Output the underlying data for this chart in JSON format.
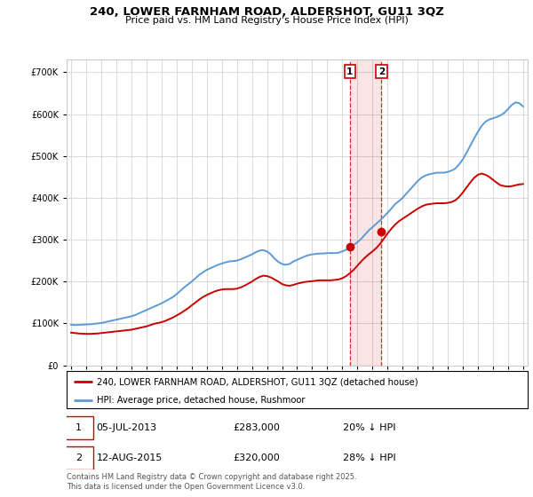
{
  "title": "240, LOWER FARNHAM ROAD, ALDERSHOT, GU11 3QZ",
  "subtitle": "Price paid vs. HM Land Registry's House Price Index (HPI)",
  "legend_line1": "240, LOWER FARNHAM ROAD, ALDERSHOT, GU11 3QZ (detached house)",
  "legend_line2": "HPI: Average price, detached house, Rushmoor",
  "annotation1_label": "1",
  "annotation1_date": "05-JUL-2013",
  "annotation1_price": "£283,000",
  "annotation1_hpi": "20% ↓ HPI",
  "annotation1_year": 2013.5,
  "annotation1_value": 283000,
  "annotation2_label": "2",
  "annotation2_date": "12-AUG-2015",
  "annotation2_price": "£320,000",
  "annotation2_hpi": "28% ↓ HPI",
  "annotation2_year": 2015.6,
  "annotation2_value": 320000,
  "footnote": "Contains HM Land Registry data © Crown copyright and database right 2025.\nThis data is licensed under the Open Government Licence v3.0.",
  "hpi_color": "#5b9bd5",
  "price_color": "#cc0000",
  "annotation_color": "#cc0000",
  "background_color": "#ffffff",
  "grid_color": "#cccccc",
  "ylim": [
    0,
    730000
  ],
  "yticks": [
    0,
    100000,
    200000,
    300000,
    400000,
    500000,
    600000,
    700000
  ],
  "hpi_years": [
    1995.0,
    1995.25,
    1995.5,
    1995.75,
    1996.0,
    1996.25,
    1996.5,
    1996.75,
    1997.0,
    1997.25,
    1997.5,
    1997.75,
    1998.0,
    1998.25,
    1998.5,
    1998.75,
    1999.0,
    1999.25,
    1999.5,
    1999.75,
    2000.0,
    2000.25,
    2000.5,
    2000.75,
    2001.0,
    2001.25,
    2001.5,
    2001.75,
    2002.0,
    2002.25,
    2002.5,
    2002.75,
    2003.0,
    2003.25,
    2003.5,
    2003.75,
    2004.0,
    2004.25,
    2004.5,
    2004.75,
    2005.0,
    2005.25,
    2005.5,
    2005.75,
    2006.0,
    2006.25,
    2006.5,
    2006.75,
    2007.0,
    2007.25,
    2007.5,
    2007.75,
    2008.0,
    2008.25,
    2008.5,
    2008.75,
    2009.0,
    2009.25,
    2009.5,
    2009.75,
    2010.0,
    2010.25,
    2010.5,
    2010.75,
    2011.0,
    2011.25,
    2011.5,
    2011.75,
    2012.0,
    2012.25,
    2012.5,
    2012.75,
    2013.0,
    2013.25,
    2013.5,
    2013.75,
    2014.0,
    2014.25,
    2014.5,
    2014.75,
    2015.0,
    2015.25,
    2015.5,
    2015.75,
    2016.0,
    2016.25,
    2016.5,
    2016.75,
    2017.0,
    2017.25,
    2017.5,
    2017.75,
    2018.0,
    2018.25,
    2018.5,
    2018.75,
    2019.0,
    2019.25,
    2019.5,
    2019.75,
    2020.0,
    2020.25,
    2020.5,
    2020.75,
    2021.0,
    2021.25,
    2021.5,
    2021.75,
    2022.0,
    2022.25,
    2022.5,
    2022.75,
    2023.0,
    2023.25,
    2023.5,
    2023.75,
    2024.0,
    2024.25,
    2024.5,
    2024.75,
    2025.0
  ],
  "hpi_values": [
    97000,
    96000,
    96500,
    97000,
    97500,
    98000,
    99000,
    100000,
    101000,
    103000,
    105000,
    107000,
    109000,
    111000,
    113000,
    115000,
    117000,
    120000,
    124000,
    128000,
    132000,
    136000,
    140000,
    144000,
    148000,
    153000,
    158000,
    163000,
    170000,
    178000,
    186000,
    193000,
    200000,
    208000,
    216000,
    222000,
    228000,
    232000,
    236000,
    240000,
    243000,
    246000,
    248000,
    249000,
    250000,
    253000,
    257000,
    261000,
    265000,
    270000,
    274000,
    275000,
    272000,
    265000,
    255000,
    247000,
    242000,
    240000,
    242000,
    248000,
    252000,
    256000,
    260000,
    263000,
    265000,
    266000,
    267000,
    267000,
    268000,
    268000,
    268000,
    269000,
    272000,
    276000,
    281000,
    287000,
    294000,
    302000,
    312000,
    322000,
    330000,
    338000,
    346000,
    355000,
    364000,
    374000,
    385000,
    392000,
    400000,
    410000,
    420000,
    430000,
    440000,
    448000,
    453000,
    456000,
    458000,
    460000,
    460000,
    460000,
    462000,
    465000,
    470000,
    480000,
    492000,
    508000,
    525000,
    542000,
    558000,
    572000,
    582000,
    587000,
    590000,
    593000,
    597000,
    603000,
    612000,
    622000,
    628000,
    626000,
    618000
  ],
  "price_years": [
    1995.0,
    1995.25,
    1995.5,
    1995.75,
    1996.0,
    1996.25,
    1996.5,
    1996.75,
    1997.0,
    1997.25,
    1997.5,
    1997.75,
    1998.0,
    1998.25,
    1998.5,
    1998.75,
    1999.0,
    1999.25,
    1999.5,
    1999.75,
    2000.0,
    2000.25,
    2000.5,
    2000.75,
    2001.0,
    2001.25,
    2001.5,
    2001.75,
    2002.0,
    2002.25,
    2002.5,
    2002.75,
    2003.0,
    2003.25,
    2003.5,
    2003.75,
    2004.0,
    2004.25,
    2004.5,
    2004.75,
    2005.0,
    2005.25,
    2005.5,
    2005.75,
    2006.0,
    2006.25,
    2006.5,
    2006.75,
    2007.0,
    2007.25,
    2007.5,
    2007.75,
    2008.0,
    2008.25,
    2008.5,
    2008.75,
    2009.0,
    2009.25,
    2009.5,
    2009.75,
    2010.0,
    2010.25,
    2010.5,
    2010.75,
    2011.0,
    2011.25,
    2011.5,
    2011.75,
    2012.0,
    2012.25,
    2012.5,
    2012.75,
    2013.0,
    2013.25,
    2013.5,
    2013.75,
    2014.0,
    2014.25,
    2014.5,
    2014.75,
    2015.0,
    2015.25,
    2015.5,
    2015.75,
    2016.0,
    2016.25,
    2016.5,
    2016.75,
    2017.0,
    2017.25,
    2017.5,
    2017.75,
    2018.0,
    2018.25,
    2018.5,
    2018.75,
    2019.0,
    2019.25,
    2019.5,
    2019.75,
    2020.0,
    2020.25,
    2020.5,
    2020.75,
    2021.0,
    2021.25,
    2021.5,
    2021.75,
    2022.0,
    2022.25,
    2022.5,
    2022.75,
    2023.0,
    2023.25,
    2023.5,
    2023.75,
    2024.0,
    2024.25,
    2024.5,
    2024.75,
    2025.0
  ],
  "price_values": [
    78000,
    77000,
    76000,
    75500,
    75000,
    75000,
    75500,
    76000,
    77000,
    78000,
    79000,
    80000,
    81000,
    82000,
    83000,
    84000,
    85000,
    87000,
    89000,
    91000,
    93000,
    96000,
    99000,
    101000,
    103000,
    106000,
    110000,
    114000,
    119000,
    124000,
    130000,
    136000,
    143000,
    150000,
    157000,
    163000,
    168000,
    172000,
    176000,
    179000,
    181000,
    182000,
    182000,
    182000,
    183000,
    186000,
    190000,
    195000,
    200000,
    206000,
    211000,
    214000,
    213000,
    210000,
    205000,
    200000,
    194000,
    191000,
    190000,
    192000,
    195000,
    197000,
    199000,
    200000,
    201000,
    202000,
    203000,
    203000,
    203000,
    203000,
    204000,
    205000,
    208000,
    213000,
    220000,
    228000,
    238000,
    248000,
    257000,
    265000,
    272000,
    280000,
    290000,
    302000,
    315000,
    326000,
    336000,
    344000,
    350000,
    356000,
    362000,
    368000,
    374000,
    379000,
    383000,
    385000,
    386000,
    387000,
    387000,
    387000,
    388000,
    390000,
    394000,
    402000,
    413000,
    425000,
    437000,
    448000,
    455000,
    458000,
    455000,
    450000,
    443000,
    436000,
    430000,
    428000,
    427000,
    428000,
    430000,
    432000,
    433000
  ]
}
